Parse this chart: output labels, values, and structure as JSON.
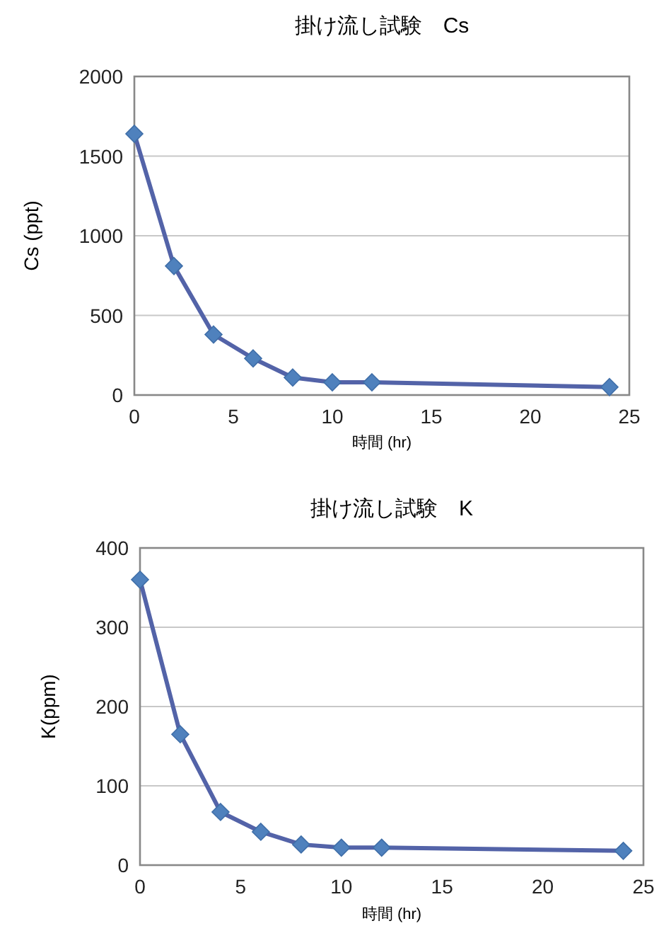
{
  "chart_data": [
    {
      "type": "line",
      "title": "掛け流し試験　Cs",
      "xlabel": "時間 (hr)",
      "ylabel": "Cs (ppt)",
      "x": [
        0,
        2,
        4,
        6,
        8,
        10,
        12,
        24
      ],
      "series": [
        {
          "color": "#5363a8",
          "values": [
            1640,
            810,
            380,
            230,
            110,
            80,
            80,
            50
          ]
        }
      ],
      "xlim": [
        0,
        25
      ],
      "xticks": [
        0,
        5,
        10,
        15,
        20,
        25
      ],
      "ylim": [
        0,
        2000
      ],
      "yticks": [
        0,
        500,
        1000,
        1500,
        2000
      ],
      "grid": "y",
      "marker": "diamond",
      "line_style": "solid"
    },
    {
      "type": "line",
      "title": "掛け流し試験　K",
      "xlabel": "時間 (hr)",
      "ylabel": "K(ppm)",
      "x": [
        0,
        2,
        4,
        6,
        8,
        10,
        12,
        24
      ],
      "series": [
        {
          "color": "#5363a8",
          "values": [
            360,
            165,
            67,
            42,
            26,
            22,
            22,
            18
          ]
        }
      ],
      "xlim": [
        0,
        25
      ],
      "xticks": [
        0,
        5,
        10,
        15,
        20,
        25
      ],
      "ylim": [
        0,
        400
      ],
      "yticks": [
        0,
        100,
        200,
        300,
        400
      ],
      "grid": "y",
      "marker": "diamond",
      "line_style": "solid"
    }
  ]
}
